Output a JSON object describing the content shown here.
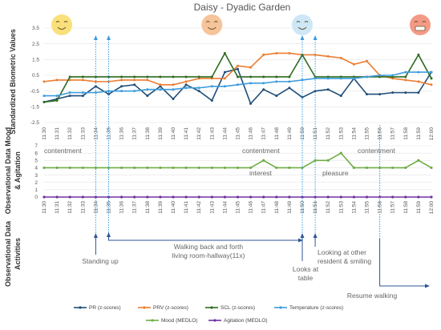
{
  "chart_data": [
    {
      "type": "line",
      "title": "Daisy - Dyadic Garden",
      "ylabel": "Standardized Biometric Values",
      "ylim": [
        -2.5,
        3.5
      ],
      "yticks": [
        "3.5",
        "2.5",
        "1.5",
        "0.5",
        "-0.5",
        "-1.5",
        "-2.5"
      ],
      "x": [
        "11:30",
        "11:31",
        "11:32",
        "11:33",
        "11:34",
        "11:35",
        "11:36",
        "11:37",
        "11:38",
        "11:39",
        "11:40",
        "11:41",
        "11:42",
        "11:43",
        "11:44",
        "11:45",
        "11:46",
        "11:47",
        "11:48",
        "11:49",
        "11:50",
        "11:51",
        "11:52",
        "11:53",
        "11:54",
        "11:55",
        "11:56",
        "11:57",
        "11:58",
        "11:59",
        "12:00"
      ],
      "series": [
        {
          "name": "PR (z-scores)",
          "color": "#1f4e79",
          "values": [
            -1.2,
            -1.0,
            -0.8,
            -0.8,
            -0.2,
            -0.7,
            -0.2,
            -0.1,
            -0.8,
            -0.2,
            -1.0,
            -0.1,
            -0.5,
            -1.1,
            0.7,
            0.9,
            -1.3,
            -0.4,
            -0.8,
            -0.3,
            -0.9,
            -0.5,
            -0.4,
            -0.8,
            0.3,
            -0.7,
            -0.7,
            -0.6,
            -0.6,
            -0.6,
            0.7
          ]
        },
        {
          "name": "PRV (z-scores)",
          "color": "#ed7d31",
          "values": [
            0.1,
            0.2,
            0.2,
            0.2,
            0.1,
            0.1,
            0.2,
            0.2,
            0.2,
            -0.1,
            -0.1,
            0.1,
            0.3,
            0.3,
            0.3,
            1.1,
            1.0,
            1.8,
            1.9,
            1.9,
            1.8,
            1.8,
            1.7,
            1.6,
            1.2,
            1.4,
            0.5,
            0.3,
            0.2,
            0.1,
            -0.1
          ]
        },
        {
          "name": "SCL (z-scores)",
          "color": "#2e6b1f",
          "values": [
            -1.2,
            -1.1,
            0.4,
            0.4,
            0.4,
            0.4,
            0.4,
            0.4,
            0.4,
            0.4,
            0.4,
            0.4,
            0.4,
            0.4,
            1.9,
            0.4,
            0.4,
            0.4,
            0.4,
            0.4,
            1.8,
            0.4,
            0.4,
            0.4,
            0.4,
            0.4,
            0.4,
            0.4,
            0.4,
            1.8,
            0.3
          ]
        },
        {
          "name": "Temperature (z-scores)",
          "color": "#3d9cdc",
          "values": [
            -0.8,
            -0.8,
            -0.6,
            -0.6,
            -0.6,
            -0.5,
            -0.5,
            -0.5,
            -0.4,
            -0.4,
            -0.4,
            -0.3,
            -0.3,
            -0.2,
            -0.2,
            -0.1,
            0.0,
            0.0,
            0.1,
            0.1,
            0.2,
            0.3,
            0.3,
            0.3,
            0.3,
            0.4,
            0.5,
            0.5,
            0.7,
            0.7,
            0.7
          ]
        }
      ],
      "markers": [
        "11:34",
        "11:35",
        "11:50",
        "11:51"
      ],
      "emoji_at": [
        "11:30",
        "11:43",
        "11:50",
        "12:00"
      ]
    },
    {
      "type": "line",
      "ylabel": "Observational Data Mood & Agitation",
      "ylim": [
        0,
        7
      ],
      "yticks": [
        "0",
        "1",
        "2",
        "3",
        "4",
        "5",
        "6",
        "7"
      ],
      "x": [
        "11:30",
        "11:31",
        "11:32",
        "11:33",
        "11:34",
        "11:35",
        "11:36",
        "11:37",
        "11:38",
        "11:39",
        "11:40",
        "11:41",
        "11:42",
        "11:43",
        "11:44",
        "11:45",
        "11:46",
        "11:47",
        "11:48",
        "11:49",
        "11:50",
        "11:51",
        "11:52",
        "11:53",
        "11:54",
        "11:55",
        "11:56",
        "11:57",
        "11:58",
        "11:59",
        "12:00"
      ],
      "series": [
        {
          "name": "Mood (MEDLO)",
          "color": "#70ad47",
          "values": [
            4,
            4,
            4,
            4,
            4,
            4,
            4,
            4,
            4,
            4,
            4,
            4,
            4,
            4,
            4,
            4,
            4,
            5,
            4,
            4,
            4,
            5,
            5,
            6,
            4,
            4,
            4,
            4,
            4,
            5,
            4
          ]
        },
        {
          "name": "Agitation (MEDLO)",
          "color": "#7030a0",
          "values": [
            0,
            0,
            0,
            0,
            0,
            0,
            0,
            0,
            0,
            0,
            0,
            0,
            0,
            0,
            0,
            0,
            0,
            0,
            0,
            0,
            0,
            0,
            0,
            0,
            0,
            0,
            0,
            0,
            0,
            0,
            0
          ]
        }
      ],
      "annotations": [
        "contentment",
        "contentment",
        "contentment",
        "interest",
        "pleasure"
      ]
    },
    {
      "type": "table",
      "ylabel": "Observational Data Activities",
      "activities": [
        "Standing up",
        "Walking back and forth living room-hallway(11x)",
        "Looks at table",
        "Looking at other resident & smiling",
        "Resume walking"
      ]
    }
  ]
}
